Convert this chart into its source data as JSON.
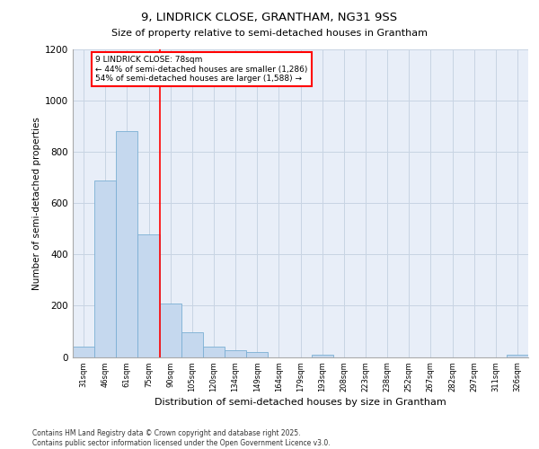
{
  "title1": "9, LINDRICK CLOSE, GRANTHAM, NG31 9SS",
  "title2": "Size of property relative to semi-detached houses in Grantham",
  "xlabel": "Distribution of semi-detached houses by size in Grantham",
  "ylabel": "Number of semi-detached properties",
  "categories": [
    "31sqm",
    "46sqm",
    "61sqm",
    "75sqm",
    "90sqm",
    "105sqm",
    "120sqm",
    "134sqm",
    "149sqm",
    "164sqm",
    "179sqm",
    "193sqm",
    "208sqm",
    "223sqm",
    "238sqm",
    "252sqm",
    "267sqm",
    "282sqm",
    "297sqm",
    "311sqm",
    "326sqm"
  ],
  "values": [
    40,
    690,
    880,
    480,
    210,
    95,
    40,
    25,
    20,
    0,
    0,
    10,
    0,
    0,
    0,
    0,
    0,
    0,
    0,
    0,
    10
  ],
  "bar_color": "#c5d8ee",
  "bar_edge_color": "#7bafd4",
  "grid_color": "#c8d4e3",
  "vline_pos": 3.5,
  "vline_color": "red",
  "annotation_title": "9 LINDRICK CLOSE: 78sqm",
  "annotation_line2": "← 44% of semi-detached houses are smaller (1,286)",
  "annotation_line3": "54% of semi-detached houses are larger (1,588) →",
  "ylim": [
    0,
    1200
  ],
  "yticks": [
    0,
    200,
    400,
    600,
    800,
    1000,
    1200
  ],
  "footer1": "Contains HM Land Registry data © Crown copyright and database right 2025.",
  "footer2": "Contains public sector information licensed under the Open Government Licence v3.0.",
  "bg_color": "#e8eef8"
}
